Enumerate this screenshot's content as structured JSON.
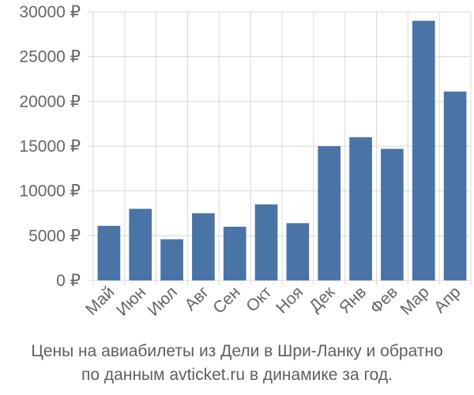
{
  "chart_data": {
    "type": "bar",
    "categories": [
      "Май",
      "Июн",
      "Июл",
      "Авг",
      "Сен",
      "Окт",
      "Ноя",
      "Дек",
      "Янв",
      "Фев",
      "Мар",
      "Апр"
    ],
    "values": [
      6100,
      8000,
      4600,
      7500,
      6000,
      8500,
      6400,
      15000,
      16000,
      14700,
      29000,
      21100
    ],
    "ylim": [
      0,
      30000
    ],
    "yticks": [
      0,
      5000,
      10000,
      15000,
      20000,
      25000,
      30000
    ],
    "ytick_labels": [
      "0 ₽",
      "5000 ₽",
      "10000 ₽",
      "15000 ₽",
      "20000 ₽",
      "25000 ₽",
      "30000 ₽"
    ],
    "bar_color": "#4a74a5",
    "grid": true,
    "caption_line1": "Цены на авиабилеты из Дели в Шри-Ланку и обратно",
    "caption_line2": "по данным avticket.ru в динамике за год."
  }
}
